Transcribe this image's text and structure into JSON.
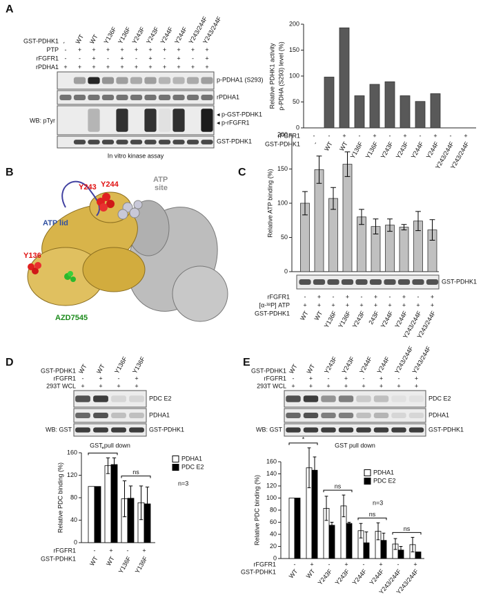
{
  "panel_labels": [
    "A",
    "B",
    "C",
    "D",
    "E"
  ],
  "blot_a": {
    "rows": [
      {
        "label": "GST-PDHK1",
        "values": [
          "-",
          "WT",
          "WT",
          "Y136F",
          "Y136F",
          "Y243F",
          "Y243F",
          "Y244F",
          "Y244F",
          "Y243/244F",
          "Y243/244F"
        ]
      },
      {
        "label": "PTP",
        "values": [
          "-",
          "+",
          "+",
          "+",
          "+",
          "+",
          "+",
          "+",
          "+",
          "+",
          "+"
        ]
      },
      {
        "label": "rFGFR1",
        "values": [
          "-",
          "-",
          "+",
          "-",
          "+",
          "-",
          "+",
          "-",
          "+",
          "-",
          "+"
        ]
      },
      {
        "label": "rPDHA1",
        "values": [
          "+",
          "+",
          "+",
          "+",
          "+",
          "+",
          "+",
          "+",
          "+",
          "+",
          "+"
        ]
      }
    ],
    "bands": [
      "p-PDHA1 (S293)",
      "rPDHA1",
      "◂ p-GST-PDHK1",
      "◂ p-rFGFR1",
      "GST-PDHK1"
    ],
    "wb_label": "WB: pTyr",
    "caption": "In vitro kinase assay"
  },
  "structure_b": {
    "labels": [
      "Y243",
      "Y244",
      "ATP",
      "site",
      "ATP lid",
      "Y136",
      "AZD7545"
    ]
  },
  "blot_c": {
    "bands": [
      "GST-PDHK1"
    ]
  },
  "blot_d": {
    "rows": [
      {
        "label": "GST-PDHK1",
        "values": [
          "WT",
          "WT",
          "Y136F",
          "Y136F"
        ]
      },
      {
        "label": "rFGFR1",
        "values": [
          "-",
          "+",
          "-",
          "+"
        ]
      },
      {
        "label": "293T WCL",
        "values": [
          "+",
          "+",
          "+",
          "+"
        ]
      }
    ],
    "bands": [
      "PDC E2",
      "PDHA1",
      "GST-PDHK1"
    ],
    "wb_label": "WB: GST",
    "caption": "GST pull down"
  },
  "blot_e": {
    "rows": [
      {
        "label": "GST-PDHK1",
        "values": [
          "WT",
          "WT",
          "Y243F",
          "Y243F",
          "Y244F",
          "Y244F",
          "Y243/244F",
          "Y243/244F"
        ]
      },
      {
        "label": "rFGFR1",
        "values": [
          "-",
          "+",
          "-",
          "+",
          "-",
          "+",
          "-",
          "+"
        ]
      },
      {
        "label": "293T WCL",
        "values": [
          "+",
          "+",
          "+",
          "+",
          "+",
          "+",
          "+",
          "+"
        ]
      }
    ],
    "bands": [
      "PDC E2",
      "PDHA1",
      "GST-PDHK1"
    ],
    "wb_label": "WB: GST",
    "caption": "GST pull down"
  },
  "chart_data": [
    {
      "type": "bar",
      "ylabel": [
        "Relative PDHK1 activity",
        "p-PDHA (S293) level (%)"
      ],
      "categories": [
        "-",
        "WT",
        "WT",
        "Y136F",
        "Y136F",
        "Y243F",
        "Y243F",
        "Y244F",
        "Y244F",
        "Y243/244F",
        "Y243/244F"
      ],
      "category_label": "GST-PDHK1",
      "condition_rows": [
        {
          "label": "rFGFR1",
          "values": [
            "-",
            "-",
            "+",
            "-",
            "+",
            "-",
            "+",
            "-",
            "+",
            "-",
            "+"
          ]
        }
      ],
      "values": [
        0,
        98,
        193,
        62,
        84,
        89,
        62,
        51,
        66,
        0,
        0
      ],
      "color": "#595959",
      "ylim": [
        0,
        200
      ],
      "yticks": [
        0,
        50,
        100,
        150,
        200
      ]
    },
    {
      "type": "bar",
      "ylabel": "Relative ATP binding (%)",
      "categories": [
        "WT",
        "WT",
        "Y136F",
        "Y136F",
        "Y243F",
        "243F",
        "Y244F",
        "Y244F",
        "Y243/244F",
        "Y243/244F"
      ],
      "category_label": "GST-PDHK1",
      "condition_rows": [
        {
          "label": "rFGFR1",
          "values": [
            "-",
            "+",
            "-",
            "+",
            "-",
            "+",
            "-",
            "+",
            "-",
            "+"
          ]
        },
        {
          "label": "[α-³²P] ATP",
          "values": [
            "+",
            "+",
            "+",
            "+",
            "+",
            "+",
            "+",
            "+",
            "+",
            "+"
          ]
        }
      ],
      "values": [
        100,
        149,
        107,
        157,
        80,
        66,
        68,
        65,
        74,
        61
      ],
      "errors": [
        17,
        20,
        16,
        18,
        11,
        11,
        9,
        4,
        14,
        15
      ],
      "color": "#c0c0c0",
      "ylim": [
        0,
        200
      ],
      "yticks": [
        0,
        50,
        100,
        150,
        200
      ]
    },
    {
      "type": "bar",
      "ylabel": "Relative PDC binding (%)",
      "categories": [
        "WT",
        "WT",
        "Y136F",
        "Y136F"
      ],
      "category_label": "GST-PDHK1",
      "condition_rows": [
        {
          "label": "rFGFR1",
          "values": [
            "-",
            "+",
            "-",
            "+"
          ]
        }
      ],
      "series": [
        {
          "name": "PDHA1",
          "color": "#ffffff",
          "values": [
            100,
            137,
            78,
            71
          ],
          "errors": [
            null,
            14,
            32,
            30
          ]
        },
        {
          "name": "PDC E2",
          "color": "#000000",
          "values": [
            100,
            139,
            79,
            69
          ],
          "errors": [
            null,
            12,
            22,
            30
          ]
        }
      ],
      "ylim": [
        0,
        160
      ],
      "yticks": [
        0,
        40,
        80,
        120,
        160
      ],
      "annotations": [
        "*",
        "ns"
      ],
      "note": "n=3",
      "legend": "upper right"
    },
    {
      "type": "bar",
      "ylabel": "Relative PDC binding (%)",
      "categories": [
        "WT",
        "WT",
        "Y243F",
        "Y243F",
        "Y244F",
        "Y244F",
        "Y243/244F",
        "Y243/244F"
      ],
      "category_label": "GST-PDHK1",
      "condition_rows": [
        {
          "label": "rFGFR1",
          "values": [
            "-",
            "+",
            "-",
            "+",
            "-",
            "+",
            "-",
            "+"
          ]
        }
      ],
      "series": [
        {
          "name": "PDHA1",
          "color": "#ffffff",
          "values": [
            100,
            150,
            83,
            87,
            46,
            45,
            24,
            23
          ],
          "errors": [
            null,
            33,
            20,
            18,
            12,
            14,
            9,
            12
          ]
        },
        {
          "name": "PDC E2",
          "color": "#000000",
          "values": [
            100,
            146,
            55,
            58,
            26,
            30,
            14,
            11
          ],
          "errors": [
            null,
            22,
            5,
            2,
            18,
            12,
            6,
            null
          ]
        }
      ],
      "ylim": [
        0,
        160
      ],
      "yticks": [
        0,
        20,
        40,
        60,
        80,
        100,
        120,
        140,
        160
      ],
      "annotations": [
        "*",
        "ns",
        "ns",
        "ns"
      ],
      "note": "n=3",
      "legend": "upper right"
    }
  ]
}
